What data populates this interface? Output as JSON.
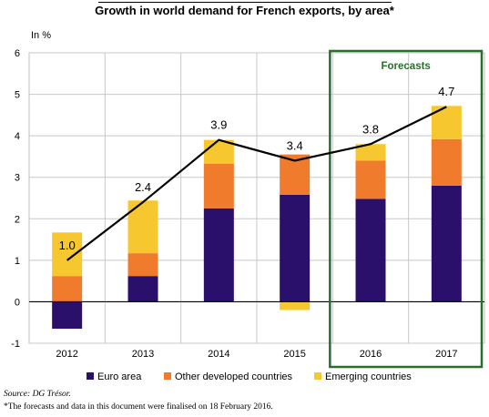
{
  "chart_data": {
    "type": "bar",
    "stacked": true,
    "title": "Growth in world demand for French exports, by area*",
    "ylabel": "In %",
    "xlabel": "",
    "ylim": [
      -1,
      6
    ],
    "yticks": [
      "6",
      "5",
      "4",
      "3",
      "2",
      "1",
      "0",
      "-1"
    ],
    "categories": [
      "2012",
      "2013",
      "2014",
      "2015",
      "2016",
      "2017"
    ],
    "grid": true,
    "legend_position": "bottom",
    "series": [
      {
        "name": "Euro area",
        "color": "#2a0f6b",
        "values": [
          -0.65,
          0.62,
          2.25,
          2.58,
          2.48,
          2.8
        ]
      },
      {
        "name": "Other developed countries",
        "color": "#f07b2c",
        "values": [
          0.62,
          0.55,
          1.08,
          0.97,
          0.92,
          1.12
        ]
      },
      {
        "name": "Emerging countries",
        "color": "#f7c72f",
        "values": [
          1.05,
          1.27,
          0.57,
          -0.2,
          0.4,
          0.8
        ]
      }
    ],
    "total": {
      "color": "#000000",
      "values": [
        1.0,
        2.4,
        3.9,
        3.4,
        3.8,
        4.7
      ],
      "labels": [
        "1.0",
        "2.4",
        "3.9",
        "3.4",
        "3.8",
        "4.7"
      ]
    },
    "forecast_box": {
      "label": "Forecasts",
      "categories": [
        "2016",
        "2017"
      ],
      "color": "#2a6e2e"
    }
  },
  "notes": {
    "source": "Source: DG Trésor.",
    "forecast": "*The forecasts and data in this document were finalised on 18 February 2016."
  }
}
